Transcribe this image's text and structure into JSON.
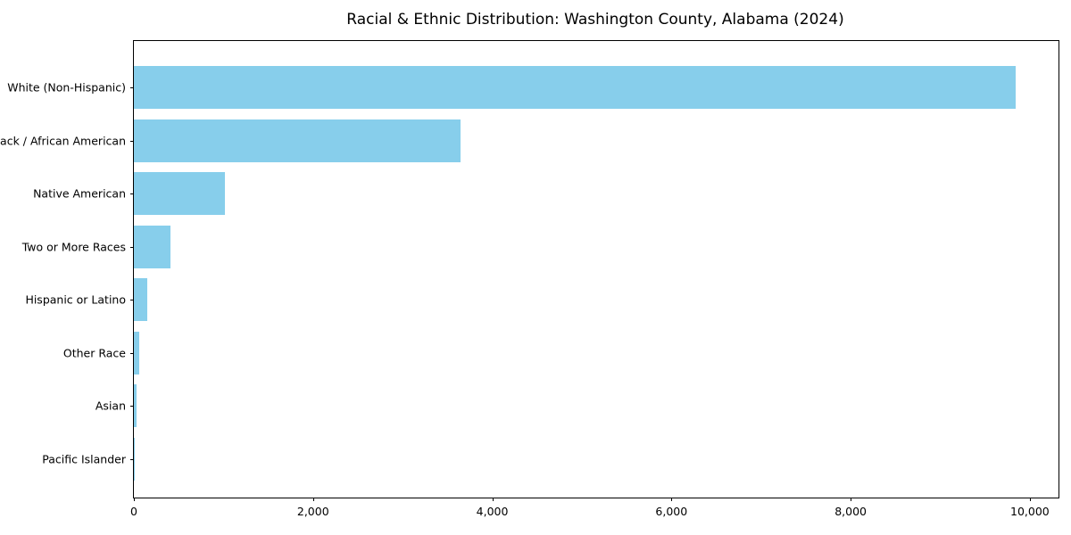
{
  "chart_data": {
    "type": "bar",
    "orientation": "horizontal",
    "title": "Racial & Ethnic Distribution: Washington County, Alabama (2024)",
    "categories": [
      "White (Non-Hispanic)",
      "Black / African American",
      "Native American",
      "Two or More Races",
      "Hispanic or Latino",
      "Other Race",
      "Asian",
      "Pacific Islander"
    ],
    "values": [
      9840,
      3645,
      1015,
      410,
      150,
      55,
      30,
      5
    ],
    "xlabel": "",
    "ylabel": "",
    "xlim": [
      0,
      10320
    ],
    "xticks": [
      0,
      2000,
      4000,
      6000,
      8000,
      10000
    ],
    "xticklabels": [
      "0",
      "2,000",
      "4,000",
      "6,000",
      "8,000",
      "10,000"
    ],
    "grid": false,
    "legend": null,
    "bar_color": "#87CEEB",
    "spine_color": "#000000",
    "text_color": "#000000",
    "background_color": "#ffffff"
  }
}
